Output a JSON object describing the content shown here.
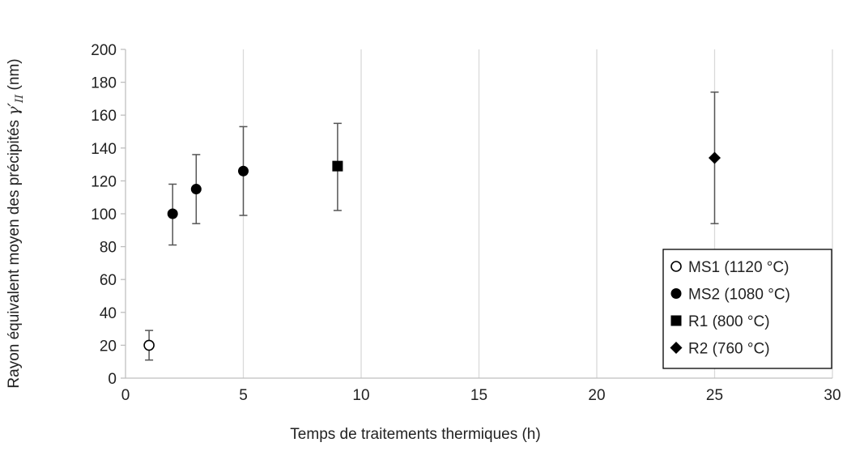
{
  "chart_data": {
    "type": "scatter",
    "xlabel": "Temps de traitements thermiques (h)",
    "ylabel": "Rayon équivalent moyen des précipités γ′ II (nm)",
    "ylabel_parts": {
      "prefix": "Rayon équivalent moyen des précipités ",
      "symbol": "γ′",
      "subscript": "II",
      "suffix": " (nm)"
    },
    "xlim": [
      0,
      30
    ],
    "ylim": [
      0,
      200
    ],
    "x_ticks": [
      0,
      5,
      10,
      15,
      20,
      25,
      30
    ],
    "y_ticks": [
      0,
      20,
      40,
      60,
      80,
      100,
      120,
      140,
      160,
      180,
      200
    ],
    "grid": {
      "vertical": true,
      "horizontal": false
    },
    "legend_position": "bottom-right",
    "series": [
      {
        "name": "MS1 (1120 °C)",
        "marker": "circle-open",
        "points": [
          {
            "x": 1,
            "y": 20,
            "err_low": 11,
            "err_high": 29
          }
        ]
      },
      {
        "name": "MS2 (1080 °C)",
        "marker": "circle-filled",
        "points": [
          {
            "x": 2,
            "y": 100,
            "err_low": 81,
            "err_high": 118
          },
          {
            "x": 3,
            "y": 115,
            "err_low": 94,
            "err_high": 136
          },
          {
            "x": 5,
            "y": 126,
            "err_low": 99,
            "err_high": 153
          }
        ]
      },
      {
        "name": "R1 (800 °C)",
        "marker": "square-filled",
        "points": [
          {
            "x": 9,
            "y": 129,
            "err_low": 102,
            "err_high": 155
          }
        ]
      },
      {
        "name": "R2 (760 °C)",
        "marker": "diamond-filled",
        "points": [
          {
            "x": 25,
            "y": 134,
            "err_low": 94,
            "err_high": 174
          }
        ]
      }
    ],
    "colors": {
      "marker": "#000000",
      "errorbar": "#555555",
      "grid": "#d9d9d9",
      "axis": "#bfbfbf"
    }
  }
}
